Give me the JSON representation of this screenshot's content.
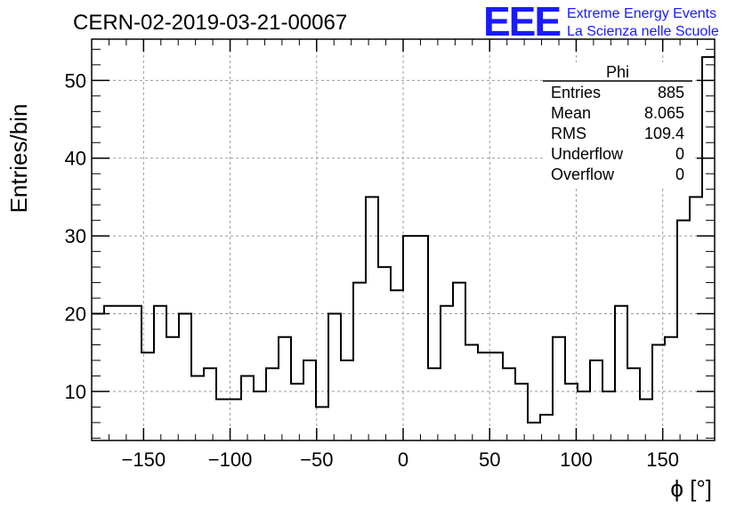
{
  "chart_data": {
    "type": "histogram",
    "title": "CERN-02-2019-03-21-00067",
    "xlabel": "ϕ [°]",
    "ylabel": "Entries/bin",
    "xlim": [
      -180,
      180
    ],
    "ylim": [
      3.7,
      55.3
    ],
    "bin_width": 7.2,
    "bin_edges_start": -180,
    "values": [
      20,
      21,
      21,
      21,
      15,
      21,
      17,
      20,
      12,
      13,
      9,
      9,
      12,
      10,
      13,
      17,
      11,
      14,
      8,
      20,
      14,
      24,
      35,
      26,
      23,
      30,
      30,
      13,
      21,
      24,
      16,
      15,
      15,
      13,
      11,
      6,
      7,
      17,
      11,
      10,
      14,
      10,
      21,
      13,
      9,
      16,
      17,
      32,
      35,
      53
    ],
    "x_ticks": [
      -150,
      -100,
      -50,
      0,
      50,
      100,
      150
    ],
    "x_tick_labels": [
      "−150",
      "−100",
      "−50",
      "0",
      "50",
      "100",
      "150"
    ],
    "y_ticks": [
      10,
      20,
      30,
      40,
      50
    ],
    "y_tick_labels": [
      "10",
      "20",
      "30",
      "40",
      "50"
    ],
    "grid": true,
    "stats_box": {
      "title": "Phi",
      "rows": [
        {
          "label": "Entries",
          "value": "885"
        },
        {
          "label": "Mean",
          "value": "8.065"
        },
        {
          "label": "RMS",
          "value": "109.4"
        },
        {
          "label": "Underflow",
          "value": "0"
        },
        {
          "label": "Overflow",
          "value": "0"
        }
      ]
    }
  },
  "logo": {
    "mark": "EEE",
    "line1": "Extreme Energy Events",
    "line2": "La Scienza nelle Scuole",
    "color": "#1a1aff"
  },
  "colors": {
    "line": "#000000",
    "grid": "#9a9a9a"
  }
}
